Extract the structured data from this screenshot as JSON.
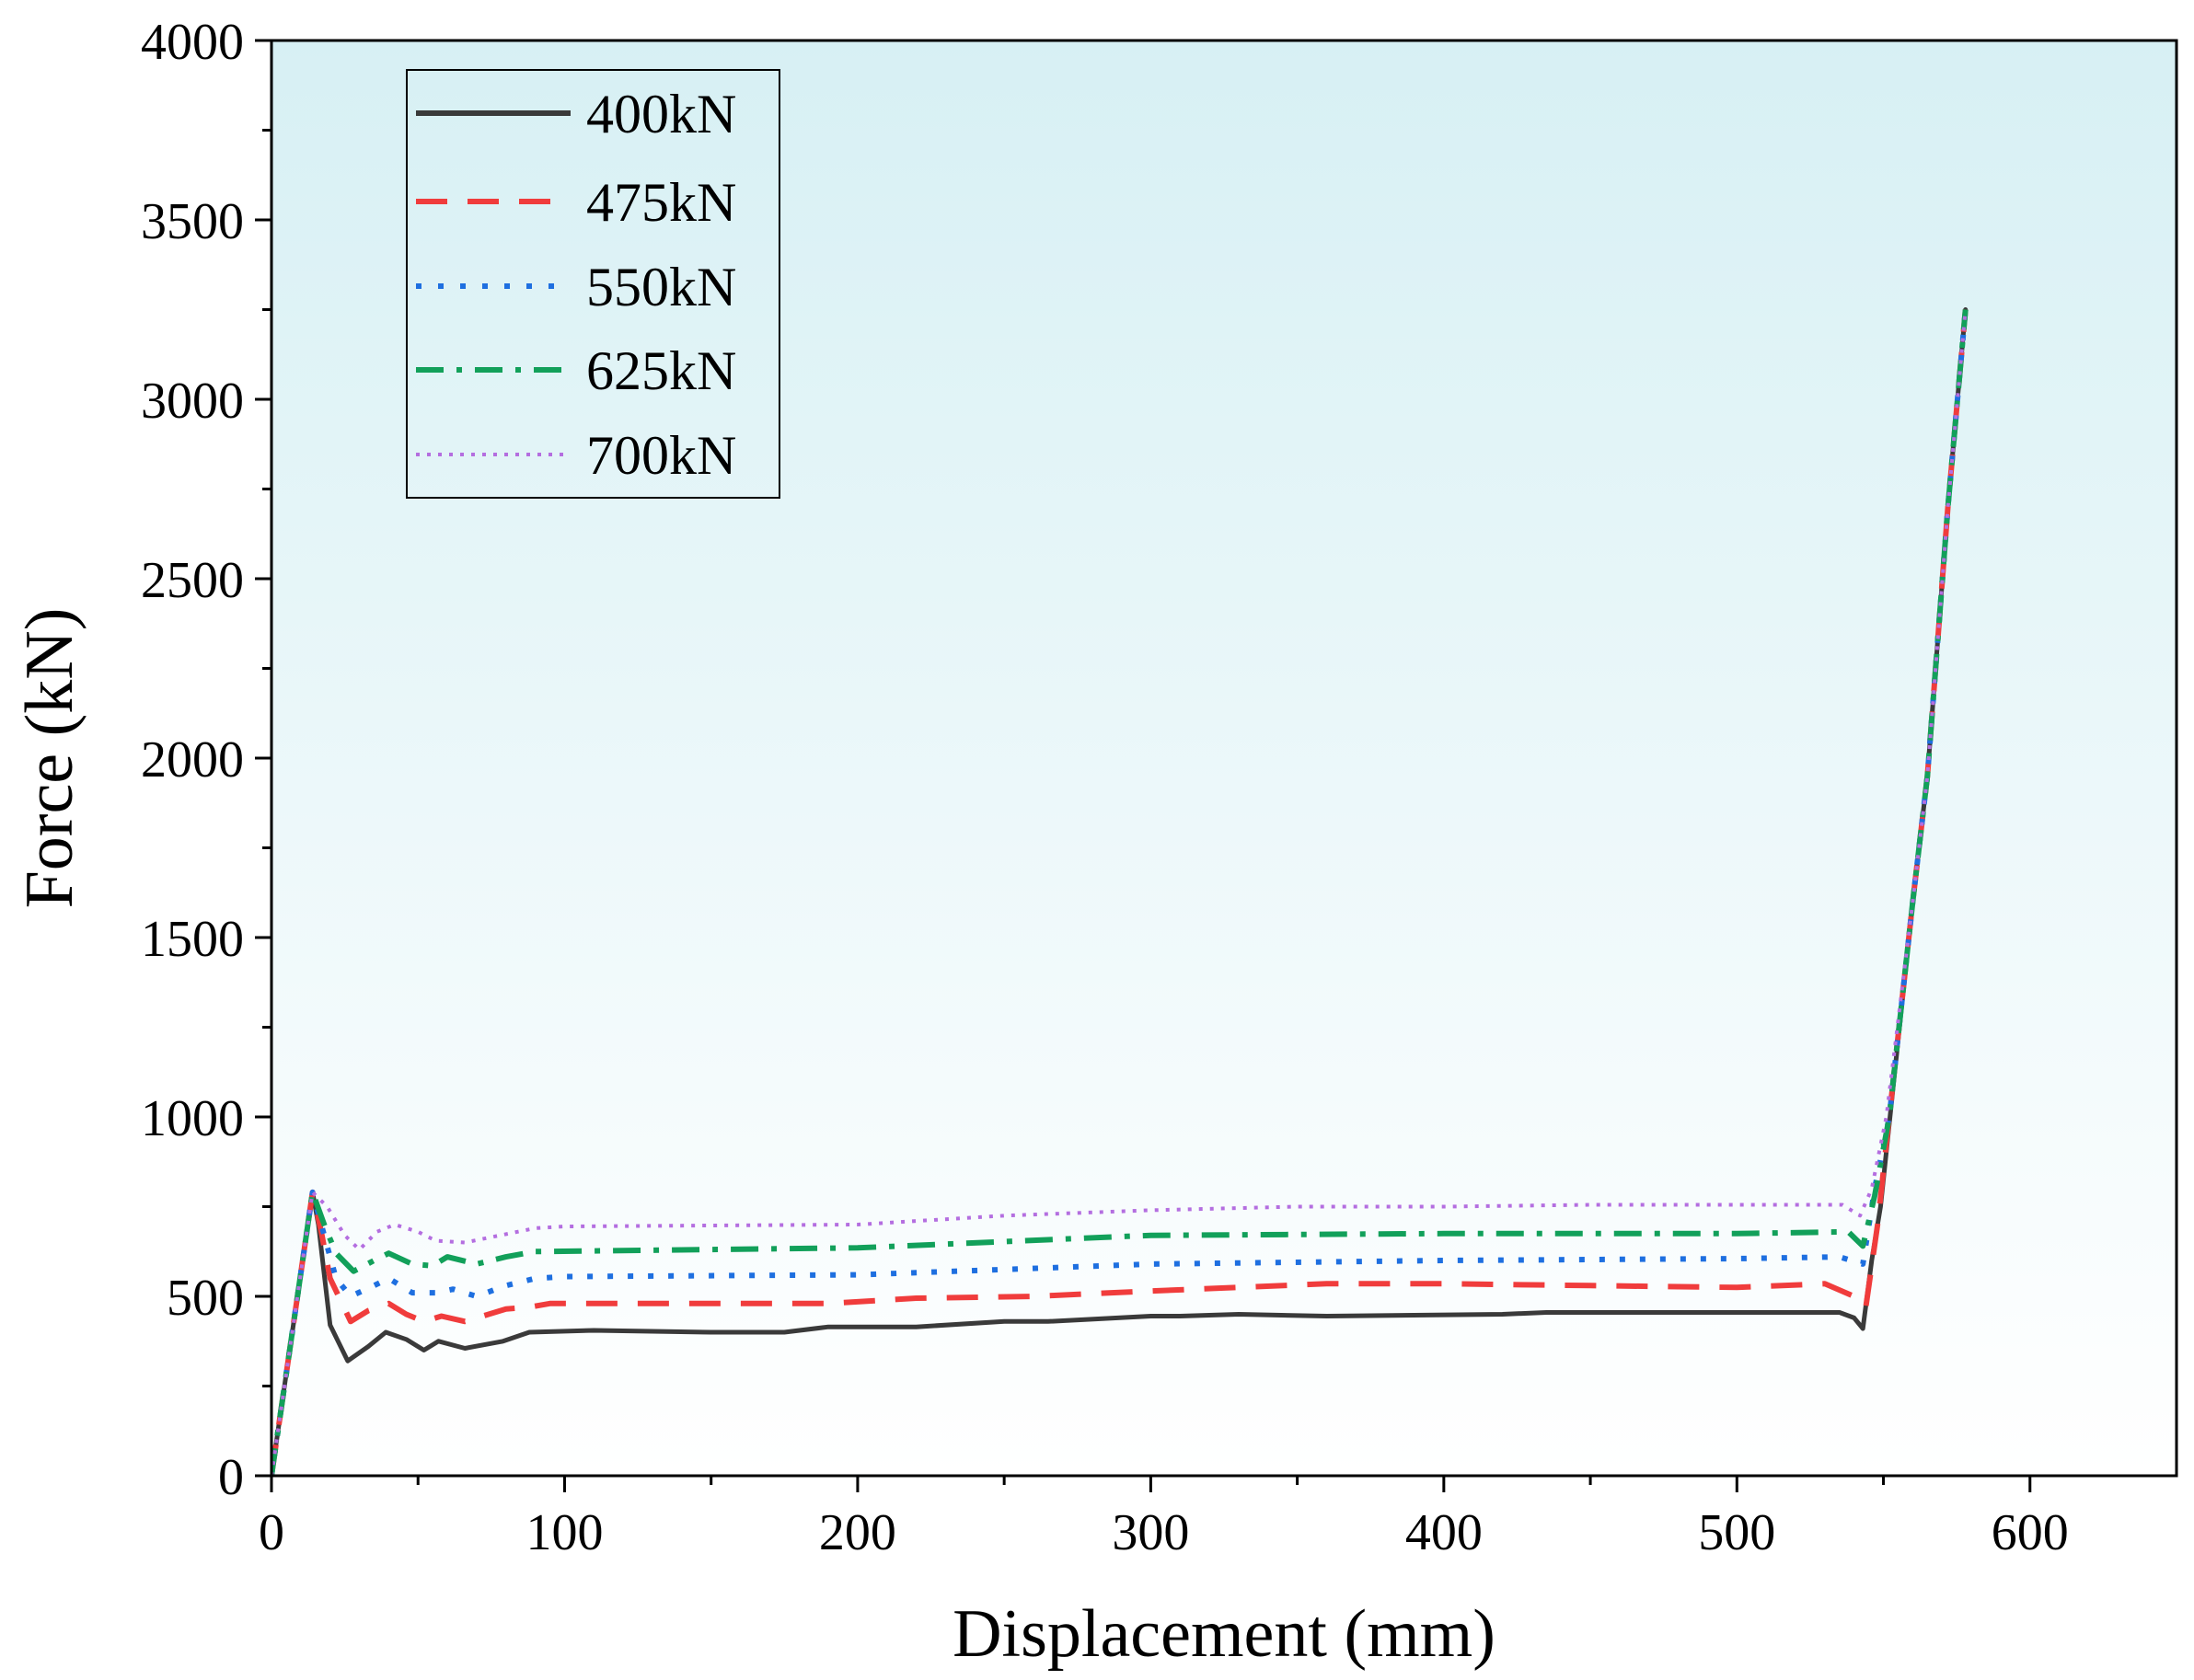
{
  "chart_data": {
    "type": "line",
    "title": "",
    "xlabel": "Displacement (mm)",
    "ylabel": "Force (kN)",
    "xlim": [
      0,
      650
    ],
    "ylim": [
      0,
      4000
    ],
    "xticks": [
      0,
      100,
      200,
      300,
      400,
      500,
      600
    ],
    "yticks": [
      0,
      500,
      1000,
      1500,
      2000,
      2500,
      3000,
      3500,
      4000
    ],
    "xtick_labels": [
      "0",
      "100",
      "200",
      "300",
      "400",
      "500",
      "600"
    ],
    "ytick_labels": [
      "0",
      "500",
      "1000",
      "1500",
      "2000",
      "2500",
      "3000",
      "3500",
      "4000"
    ],
    "legend_position": "top-left",
    "grid": false,
    "series": [
      {
        "name": "400kN",
        "color": "#3a3a3a",
        "style": "solid",
        "points": [
          [
            0,
            0
          ],
          [
            14,
            790
          ],
          [
            16,
            700
          ],
          [
            20,
            420
          ],
          [
            26,
            320
          ],
          [
            33,
            360
          ],
          [
            39,
            400
          ],
          [
            46,
            380
          ],
          [
            52,
            350
          ],
          [
            57,
            375
          ],
          [
            66,
            355
          ],
          [
            79,
            375
          ],
          [
            88,
            400
          ],
          [
            110,
            405
          ],
          [
            150,
            400
          ],
          [
            175,
            400
          ],
          [
            190,
            415
          ],
          [
            220,
            415
          ],
          [
            250,
            430
          ],
          [
            265,
            430
          ],
          [
            300,
            445
          ],
          [
            310,
            445
          ],
          [
            330,
            450
          ],
          [
            360,
            445
          ],
          [
            420,
            450
          ],
          [
            435,
            455
          ],
          [
            480,
            455
          ],
          [
            535,
            455
          ],
          [
            540,
            440
          ],
          [
            543,
            410
          ],
          [
            546,
            600
          ],
          [
            549,
            750
          ],
          [
            560,
            1600
          ],
          [
            565,
            1950
          ],
          [
            572,
            2700
          ],
          [
            578,
            3250
          ]
        ]
      },
      {
        "name": "475kN",
        "color": "#f03c3c",
        "style": "dashed",
        "points": [
          [
            0,
            0
          ],
          [
            14,
            790
          ],
          [
            17,
            680
          ],
          [
            20,
            550
          ],
          [
            27,
            430
          ],
          [
            33,
            460
          ],
          [
            40,
            480
          ],
          [
            46,
            450
          ],
          [
            52,
            430
          ],
          [
            58,
            445
          ],
          [
            66,
            430
          ],
          [
            80,
            465
          ],
          [
            88,
            470
          ],
          [
            95,
            480
          ],
          [
            175,
            480
          ],
          [
            190,
            480
          ],
          [
            220,
            495
          ],
          [
            260,
            500
          ],
          [
            300,
            515
          ],
          [
            360,
            535
          ],
          [
            400,
            535
          ],
          [
            450,
            530
          ],
          [
            500,
            525
          ],
          [
            530,
            535
          ],
          [
            540,
            500
          ],
          [
            544,
            470
          ],
          [
            548,
            700
          ],
          [
            552,
            1000
          ],
          [
            560,
            1600
          ],
          [
            565,
            1950
          ],
          [
            572,
            2700
          ],
          [
            578,
            3250
          ]
        ]
      },
      {
        "name": "550kN",
        "color": "#1e6fe0",
        "style": "dotted",
        "points": [
          [
            0,
            0
          ],
          [
            14,
            790
          ],
          [
            17,
            700
          ],
          [
            22,
            550
          ],
          [
            27,
            500
          ],
          [
            35,
            530
          ],
          [
            40,
            550
          ],
          [
            48,
            510
          ],
          [
            56,
            510
          ],
          [
            62,
            520
          ],
          [
            70,
            500
          ],
          [
            80,
            530
          ],
          [
            90,
            550
          ],
          [
            100,
            555
          ],
          [
            200,
            560
          ],
          [
            250,
            575
          ],
          [
            300,
            590
          ],
          [
            400,
            600
          ],
          [
            500,
            605
          ],
          [
            535,
            610
          ],
          [
            543,
            590
          ],
          [
            547,
            800
          ],
          [
            552,
            1000
          ],
          [
            560,
            1600
          ],
          [
            565,
            1950
          ],
          [
            572,
            2700
          ],
          [
            578,
            3250
          ]
        ]
      },
      {
        "name": "625kN",
        "color": "#12a05a",
        "style": "dashdot",
        "points": [
          [
            0,
            0
          ],
          [
            14,
            790
          ],
          [
            18,
            700
          ],
          [
            22,
            620
          ],
          [
            28,
            570
          ],
          [
            35,
            600
          ],
          [
            40,
            620
          ],
          [
            48,
            590
          ],
          [
            55,
            585
          ],
          [
            60,
            610
          ],
          [
            70,
            590
          ],
          [
            80,
            610
          ],
          [
            90,
            625
          ],
          [
            200,
            635
          ],
          [
            300,
            670
          ],
          [
            400,
            675
          ],
          [
            500,
            675
          ],
          [
            538,
            680
          ],
          [
            543,
            640
          ],
          [
            547,
            780
          ],
          [
            552,
            1000
          ],
          [
            560,
            1600
          ],
          [
            565,
            1950
          ],
          [
            572,
            2700
          ],
          [
            578,
            3250
          ]
        ]
      },
      {
        "name": "700kN",
        "color": "#b46ee0",
        "style": "fine-dotted",
        "points": [
          [
            0,
            0
          ],
          [
            14,
            790
          ],
          [
            19,
            750
          ],
          [
            25,
            670
          ],
          [
            30,
            630
          ],
          [
            36,
            680
          ],
          [
            42,
            700
          ],
          [
            50,
            680
          ],
          [
            56,
            655
          ],
          [
            66,
            650
          ],
          [
            78,
            670
          ],
          [
            90,
            690
          ],
          [
            100,
            695
          ],
          [
            200,
            700
          ],
          [
            250,
            725
          ],
          [
            300,
            740
          ],
          [
            350,
            750
          ],
          [
            400,
            750
          ],
          [
            450,
            755
          ],
          [
            536,
            755
          ],
          [
            542,
            725
          ],
          [
            546,
            800
          ],
          [
            551,
            1000
          ],
          [
            560,
            1600
          ],
          [
            565,
            1950
          ],
          [
            572,
            2700
          ],
          [
            578,
            3250
          ]
        ]
      }
    ]
  }
}
